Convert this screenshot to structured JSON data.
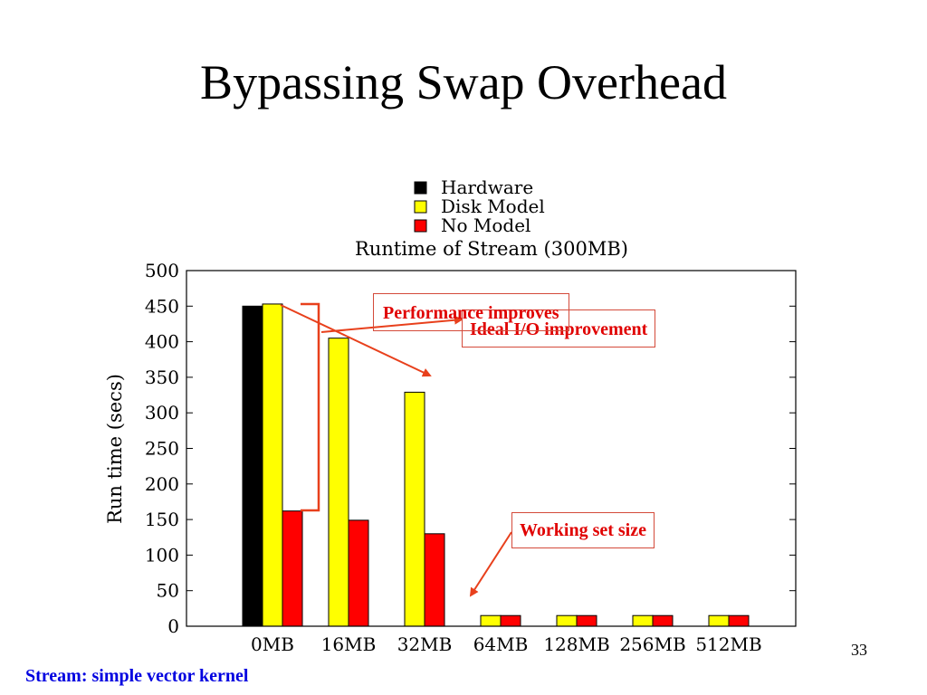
{
  "slide": {
    "title": "Bypassing Swap Overhead",
    "footer": "Stream: simple vector kernel",
    "page_number": "33"
  },
  "callouts": {
    "ideal_io": "Ideal I/O improvement",
    "performance": "Performance improves",
    "working_set": "Working set size"
  },
  "colors": {
    "callout_text": "#e00000",
    "callout_border": "#d44a3a",
    "arrow": "#e8401c",
    "footer_text": "#0000e0"
  },
  "chart_data": {
    "type": "bar",
    "title": "Runtime of Stream (300MB)",
    "ylabel": "Run time (secs)",
    "xlabel": "",
    "categories": [
      "0MB",
      "16MB",
      "32MB",
      "64MB",
      "128MB",
      "256MB",
      "512MB"
    ],
    "ylim": [
      0,
      500
    ],
    "yticks": [
      0,
      50,
      100,
      150,
      200,
      250,
      300,
      350,
      400,
      450,
      500
    ],
    "legend_position": "top-center",
    "grid": false,
    "series": [
      {
        "name": "Hardware",
        "color": "#000000",
        "values": [
          450,
          null,
          null,
          null,
          null,
          null,
          null
        ]
      },
      {
        "name": "Disk Model",
        "color": "#ffff00",
        "values": [
          453,
          405,
          329,
          15,
          15,
          15,
          15
        ]
      },
      {
        "name": "No Model",
        "color": "#ff0000",
        "values": [
          162,
          149,
          130,
          15,
          15,
          15,
          15
        ]
      }
    ]
  }
}
